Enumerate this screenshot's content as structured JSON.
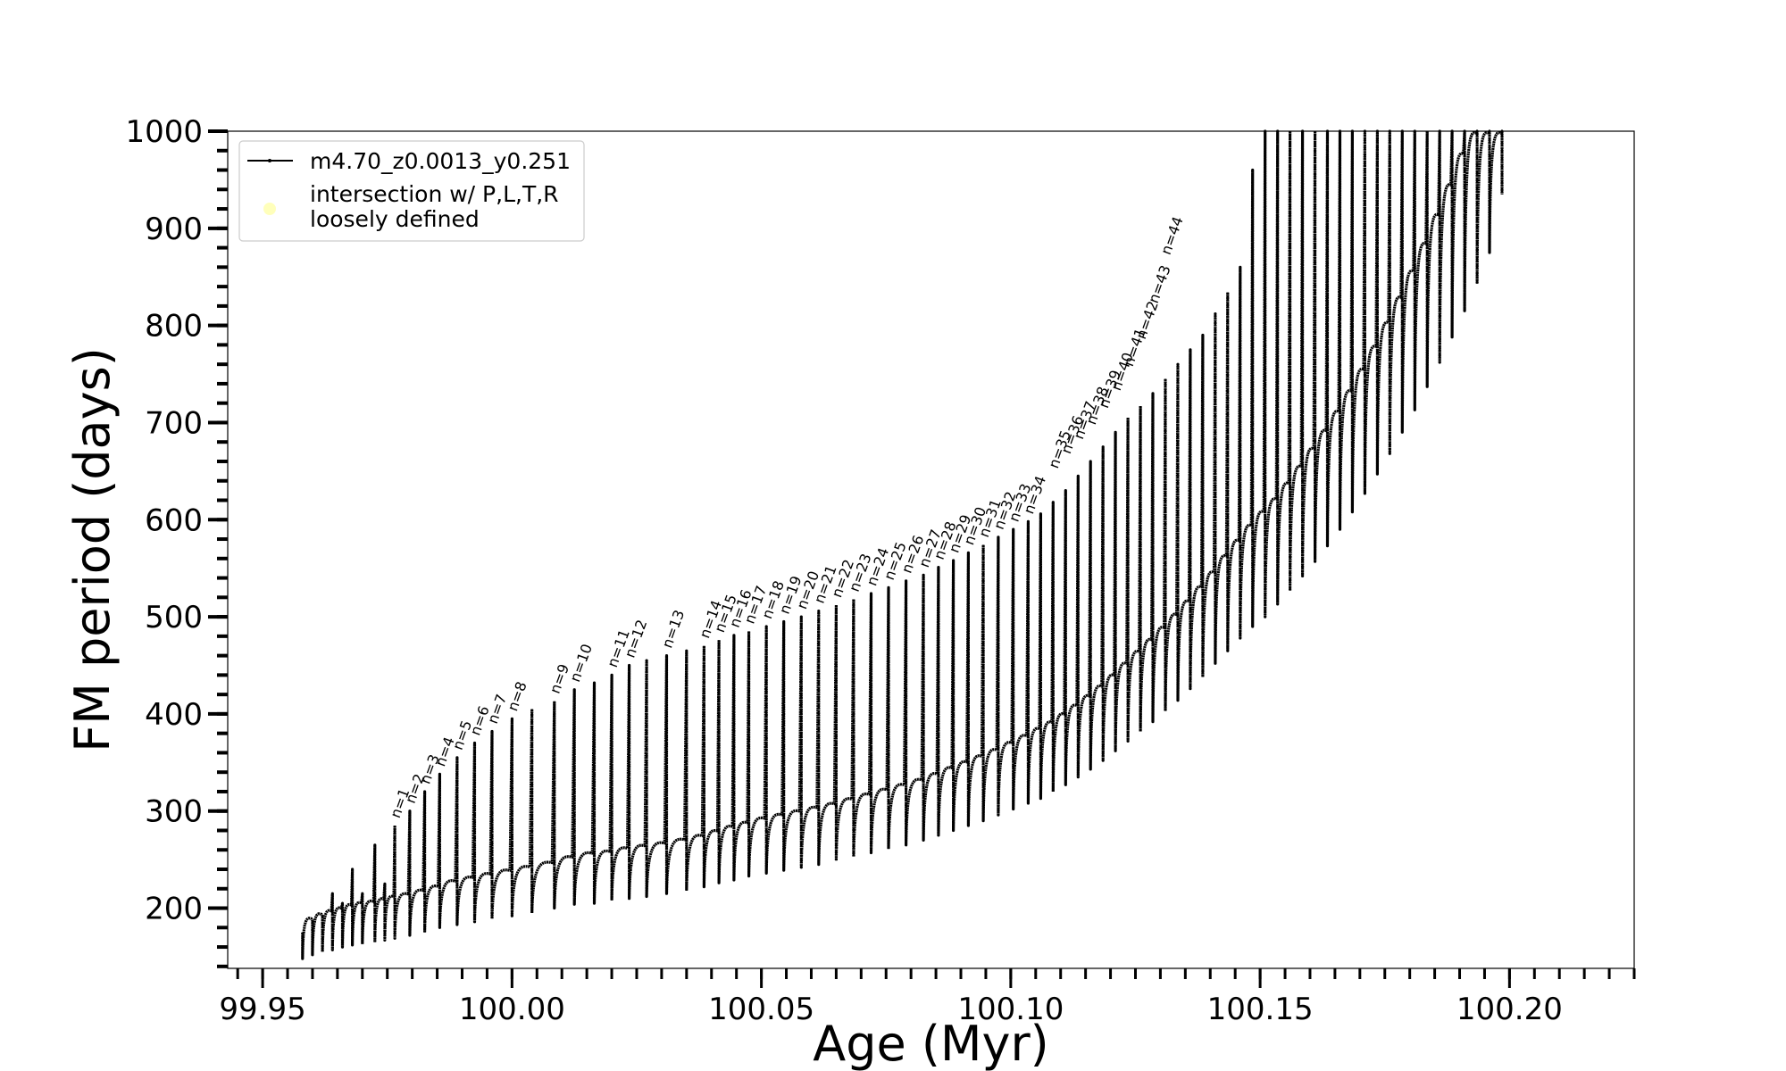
{
  "chart_data": {
    "type": "line",
    "xlabel": "Age (Myr)",
    "ylabel": "FM period (days)",
    "xlim": [
      99.943,
      100.225
    ],
    "ylim": [
      138,
      1000
    ],
    "x_major_ticks": [
      99.95,
      100.0,
      100.05,
      100.1,
      100.15,
      100.2
    ],
    "x_tick_labels": [
      "99.95",
      "100.00",
      "100.05",
      "100.10",
      "100.15",
      "100.20"
    ],
    "x_minor_step": 0.005,
    "y_major_ticks": [
      200,
      300,
      400,
      500,
      600,
      700,
      800,
      900,
      1000
    ],
    "y_tick_labels": [
      "200",
      "300",
      "400",
      "500",
      "600",
      "700",
      "800",
      "900",
      "1000"
    ],
    "y_minor_step": 20,
    "line_color": "#000000",
    "marker_color": "#ffffaa",
    "legend": {
      "placement": "top-left",
      "entries": [
        {
          "label": "m4.70_z0.0013_y0.251",
          "kind": "line"
        },
        {
          "label": "intersection w/ P,L,T,R",
          "label2": "loosely defined",
          "kind": "marker"
        }
      ]
    },
    "series": [
      {
        "name": "m4.70_z0.0013_y0.251",
        "pulses": [
          {
            "x": 99.958,
            "top": 175,
            "bottom": 148
          },
          {
            "x": 99.96,
            "top": 187,
            "bottom": 152
          },
          {
            "x": 99.962,
            "top": 192,
            "bottom": 155
          },
          {
            "x": 99.964,
            "top": 215,
            "bottom": 157
          },
          {
            "x": 99.966,
            "top": 205,
            "bottom": 160
          },
          {
            "x": 99.968,
            "top": 240,
            "bottom": 162
          },
          {
            "x": 99.97,
            "top": 215,
            "bottom": 163
          },
          {
            "x": 99.9725,
            "top": 265,
            "bottom": 165
          },
          {
            "x": 99.9745,
            "top": 225,
            "bottom": 167
          },
          {
            "x": 99.9765,
            "top": 285,
            "bottom": 169
          },
          {
            "x": 99.9795,
            "top": 300,
            "bottom": 172
          },
          {
            "x": 99.9825,
            "top": 320,
            "bottom": 175
          },
          {
            "x": 99.9855,
            "top": 338,
            "bottom": 180
          },
          {
            "x": 99.989,
            "top": 355,
            "bottom": 183
          },
          {
            "x": 99.9925,
            "top": 370,
            "bottom": 186
          },
          {
            "x": 99.996,
            "top": 382,
            "bottom": 189
          },
          {
            "x": 100.0,
            "top": 395,
            "bottom": 192
          },
          {
            "x": 100.004,
            "top": 405,
            "bottom": 195
          },
          {
            "x": 100.0085,
            "top": 413,
            "bottom": 200
          },
          {
            "x": 100.0125,
            "top": 425,
            "bottom": 204
          },
          {
            "x": 100.0165,
            "top": 432,
            "bottom": 205
          },
          {
            "x": 100.02,
            "top": 440,
            "bottom": 208
          },
          {
            "x": 100.0235,
            "top": 450,
            "bottom": 210
          },
          {
            "x": 100.027,
            "top": 455,
            "bottom": 212
          },
          {
            "x": 100.031,
            "top": 460,
            "bottom": 215
          },
          {
            "x": 100.035,
            "top": 465,
            "bottom": 218
          },
          {
            "x": 100.0385,
            "top": 470,
            "bottom": 222
          },
          {
            "x": 100.0415,
            "top": 476,
            "bottom": 226
          },
          {
            "x": 100.0445,
            "top": 481,
            "bottom": 229
          },
          {
            "x": 100.0475,
            "top": 485,
            "bottom": 233
          },
          {
            "x": 100.051,
            "top": 490,
            "bottom": 236
          },
          {
            "x": 100.0545,
            "top": 495,
            "bottom": 239
          },
          {
            "x": 100.058,
            "top": 500,
            "bottom": 242
          },
          {
            "x": 100.0615,
            "top": 506,
            "bottom": 245
          },
          {
            "x": 100.065,
            "top": 512,
            "bottom": 249
          },
          {
            "x": 100.0685,
            "top": 518,
            "bottom": 253
          },
          {
            "x": 100.072,
            "top": 524,
            "bottom": 257
          },
          {
            "x": 100.0755,
            "top": 530,
            "bottom": 261
          },
          {
            "x": 100.079,
            "top": 537,
            "bottom": 265
          },
          {
            "x": 100.0825,
            "top": 543,
            "bottom": 270
          },
          {
            "x": 100.0855,
            "top": 551,
            "bottom": 275
          },
          {
            "x": 100.0885,
            "top": 558,
            "bottom": 280
          },
          {
            "x": 100.0915,
            "top": 566,
            "bottom": 285
          },
          {
            "x": 100.0945,
            "top": 574,
            "bottom": 290
          },
          {
            "x": 100.0975,
            "top": 582,
            "bottom": 296
          },
          {
            "x": 100.1005,
            "top": 590,
            "bottom": 302
          },
          {
            "x": 100.1035,
            "top": 598,
            "bottom": 308
          },
          {
            "x": 100.106,
            "top": 606,
            "bottom": 313
          },
          {
            "x": 100.1085,
            "top": 618,
            "bottom": 320
          },
          {
            "x": 100.111,
            "top": 630,
            "bottom": 327
          },
          {
            "x": 100.1135,
            "top": 645,
            "bottom": 335
          },
          {
            "x": 100.116,
            "top": 660,
            "bottom": 343
          },
          {
            "x": 100.1185,
            "top": 675,
            "bottom": 352
          },
          {
            "x": 100.121,
            "top": 690,
            "bottom": 362
          },
          {
            "x": 100.1235,
            "top": 705,
            "bottom": 372
          },
          {
            "x": 100.126,
            "top": 717,
            "bottom": 382
          },
          {
            "x": 100.1285,
            "top": 730,
            "bottom": 392
          },
          {
            "x": 100.131,
            "top": 745,
            "bottom": 403
          },
          {
            "x": 100.1335,
            "top": 760,
            "bottom": 414
          },
          {
            "x": 100.136,
            "top": 775,
            "bottom": 426
          },
          {
            "x": 100.1385,
            "top": 790,
            "bottom": 438
          },
          {
            "x": 100.141,
            "top": 812,
            "bottom": 452
          },
          {
            "x": 100.1435,
            "top": 834,
            "bottom": 465
          },
          {
            "x": 100.146,
            "top": 860,
            "bottom": 478
          },
          {
            "x": 100.1485,
            "top": 960,
            "bottom": 490
          },
          {
            "x": 100.151,
            "top": 1000,
            "bottom": 500
          },
          {
            "x": 100.1535,
            "top": 1000,
            "bottom": 513
          },
          {
            "x": 100.156,
            "top": 1000,
            "bottom": 527
          },
          {
            "x": 100.1585,
            "top": 1000,
            "bottom": 542
          },
          {
            "x": 100.161,
            "top": 1000,
            "bottom": 557
          },
          {
            "x": 100.1635,
            "top": 1000,
            "bottom": 573
          },
          {
            "x": 100.166,
            "top": 1000,
            "bottom": 590
          },
          {
            "x": 100.1685,
            "top": 1000,
            "bottom": 608
          },
          {
            "x": 100.171,
            "top": 1000,
            "bottom": 627
          },
          {
            "x": 100.1735,
            "top": 1000,
            "bottom": 647
          },
          {
            "x": 100.176,
            "top": 1000,
            "bottom": 668
          },
          {
            "x": 100.1785,
            "top": 1000,
            "bottom": 690
          },
          {
            "x": 100.181,
            "top": 1000,
            "bottom": 713
          },
          {
            "x": 100.1835,
            "top": 1000,
            "bottom": 737
          },
          {
            "x": 100.186,
            "top": 1000,
            "bottom": 762
          },
          {
            "x": 100.1885,
            "top": 1000,
            "bottom": 788
          },
          {
            "x": 100.191,
            "top": 1000,
            "bottom": 815
          },
          {
            "x": 100.1935,
            "top": 1000,
            "bottom": 843
          },
          {
            "x": 100.196,
            "top": 1000,
            "bottom": 875
          },
          {
            "x": 100.1985,
            "top": 1000,
            "bottom": 935
          }
        ]
      }
    ],
    "annotations": [
      {
        "text": "n=1",
        "x": 99.9765,
        "y": 290
      },
      {
        "text": "n=2",
        "x": 99.9795,
        "y": 305
      },
      {
        "text": "n=3",
        "x": 99.9825,
        "y": 325
      },
      {
        "text": "n=4",
        "x": 99.9855,
        "y": 343
      },
      {
        "text": "n=5",
        "x": 99.989,
        "y": 360
      },
      {
        "text": "n=6",
        "x": 99.9925,
        "y": 375
      },
      {
        "text": "n=7",
        "x": 99.996,
        "y": 387
      },
      {
        "text": "n=8",
        "x": 100.0,
        "y": 400
      },
      {
        "text": "n=9",
        "x": 100.0085,
        "y": 418
      },
      {
        "text": "n=10",
        "x": 100.0125,
        "y": 430
      },
      {
        "text": "n=11",
        "x": 100.02,
        "y": 445
      },
      {
        "text": "n=12",
        "x": 100.0235,
        "y": 455
      },
      {
        "text": "n=13",
        "x": 100.031,
        "y": 465
      },
      {
        "text": "n=14",
        "x": 100.0385,
        "y": 475
      },
      {
        "text": "n=15",
        "x": 100.0415,
        "y": 481
      },
      {
        "text": "n=16",
        "x": 100.0445,
        "y": 486
      },
      {
        "text": "n=17",
        "x": 100.0475,
        "y": 490
      },
      {
        "text": "n=18",
        "x": 100.051,
        "y": 495
      },
      {
        "text": "n=19",
        "x": 100.0545,
        "y": 500
      },
      {
        "text": "n=20",
        "x": 100.058,
        "y": 505
      },
      {
        "text": "n=21",
        "x": 100.0615,
        "y": 511
      },
      {
        "text": "n=22",
        "x": 100.065,
        "y": 517
      },
      {
        "text": "n=23",
        "x": 100.0685,
        "y": 523
      },
      {
        "text": "n=24",
        "x": 100.072,
        "y": 529
      },
      {
        "text": "n=25",
        "x": 100.0755,
        "y": 535
      },
      {
        "text": "n=26",
        "x": 100.079,
        "y": 542
      },
      {
        "text": "n=27",
        "x": 100.0825,
        "y": 548
      },
      {
        "text": "n=28",
        "x": 100.0855,
        "y": 556
      },
      {
        "text": "n=29",
        "x": 100.0885,
        "y": 563
      },
      {
        "text": "n=30",
        "x": 100.0915,
        "y": 571
      },
      {
        "text": "n=31",
        "x": 100.0945,
        "y": 579
      },
      {
        "text": "n=32",
        "x": 100.0975,
        "y": 587
      },
      {
        "text": "n=33",
        "x": 100.1005,
        "y": 595
      },
      {
        "text": "n=34",
        "x": 100.1035,
        "y": 603
      },
      {
        "text": "n=35",
        "x": 100.1085,
        "y": 650
      },
      {
        "text": "n=36",
        "x": 100.111,
        "y": 665
      },
      {
        "text": "n=37",
        "x": 100.1135,
        "y": 680
      },
      {
        "text": "n=38",
        "x": 100.116,
        "y": 695
      },
      {
        "text": "n=39",
        "x": 100.1185,
        "y": 712
      },
      {
        "text": "n=40",
        "x": 100.121,
        "y": 730
      },
      {
        "text": "n=41",
        "x": 100.1235,
        "y": 755
      },
      {
        "text": "n=42",
        "x": 100.126,
        "y": 783
      },
      {
        "text": "n=43",
        "x": 100.1285,
        "y": 820
      },
      {
        "text": "n=44",
        "x": 100.131,
        "y": 870
      }
    ]
  }
}
